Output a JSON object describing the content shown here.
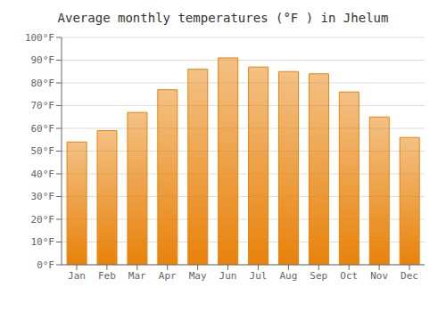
{
  "chart_data": {
    "type": "bar",
    "title": "Average monthly temperatures (°F ) in Jhelum",
    "categories": [
      "Jan",
      "Feb",
      "Mar",
      "Apr",
      "May",
      "Jun",
      "Jul",
      "Aug",
      "Sep",
      "Oct",
      "Nov",
      "Dec"
    ],
    "values": [
      54,
      59,
      67,
      77,
      86,
      91,
      87,
      85,
      84,
      76,
      65,
      56
    ],
    "color": "#E8820A",
    "ylim": [
      0,
      100
    ],
    "yticks": [
      {
        "value": 0,
        "label": "0°F"
      },
      {
        "value": 10,
        "label": "10°F"
      },
      {
        "value": 20,
        "label": "20°F"
      },
      {
        "value": 30,
        "label": "30°F"
      },
      {
        "value": 40,
        "label": "40°F"
      },
      {
        "value": 50,
        "label": "50°F"
      },
      {
        "value": 60,
        "label": "60°F"
      },
      {
        "value": 70,
        "label": "70°F"
      },
      {
        "value": 80,
        "label": "80°F"
      },
      {
        "value": 90,
        "label": "90°F"
      },
      {
        "value": 100,
        "label": "100°F"
      }
    ],
    "grid": true
  }
}
